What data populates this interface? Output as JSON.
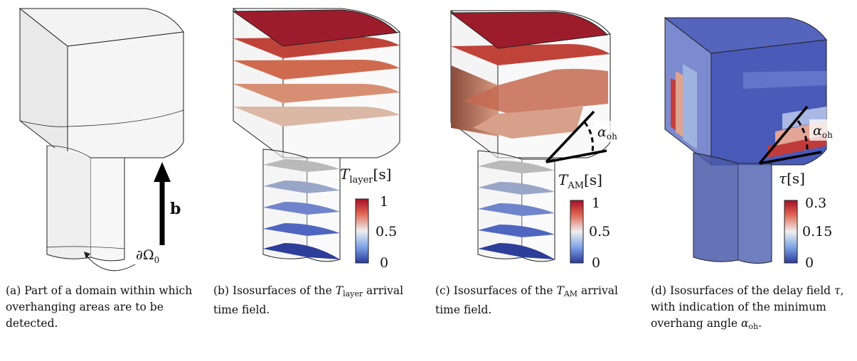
{
  "panels": [
    {
      "id": "a",
      "build_direction_label": "b",
      "boundary_label": "∂Ω",
      "boundary_sub": "0",
      "caption": "(a) Part of a domain within which overhanging areas are to be detected."
    },
    {
      "id": "b",
      "colorbar": {
        "symbol": "T",
        "sub": "layer",
        "unit": "[s]",
        "ticks": [
          "1",
          "0.5",
          "0"
        ],
        "min": 0,
        "max": 1
      },
      "caption_pre": "(b) Isosurfaces of the ",
      "caption_sym": "T",
      "caption_sub": "layer",
      "caption_post": " arrival time field."
    },
    {
      "id": "c",
      "colorbar": {
        "symbol": "T",
        "sub": "AM",
        "unit": "[s]",
        "ticks": [
          "1",
          "0.5",
          "0"
        ],
        "min": 0,
        "max": 1
      },
      "angle_label": "α",
      "angle_sub": "oh",
      "caption_pre": "(c) Isosurfaces of the ",
      "caption_sym": "T",
      "caption_sub": "AM",
      "caption_post": " arrival time field."
    },
    {
      "id": "d",
      "colorbar": {
        "symbol": "τ",
        "sub": "",
        "unit": "[s]",
        "ticks": [
          "0.3",
          "0.15",
          "0"
        ],
        "min": 0,
        "max": 0.3
      },
      "angle_label": "α",
      "angle_sub": "oh",
      "caption_pre": "(d) Isosurfaces of the delay field ",
      "caption_sym": "τ",
      "caption_mid": ", with indication of the minimum overhang angle ",
      "caption_sym2": "α",
      "caption_sub2": "oh",
      "caption_post": "."
    }
  ],
  "colors": {
    "high": "#b2182b",
    "mid": "#ececec",
    "low": "#2b3c9c",
    "outline": "#222222"
  }
}
